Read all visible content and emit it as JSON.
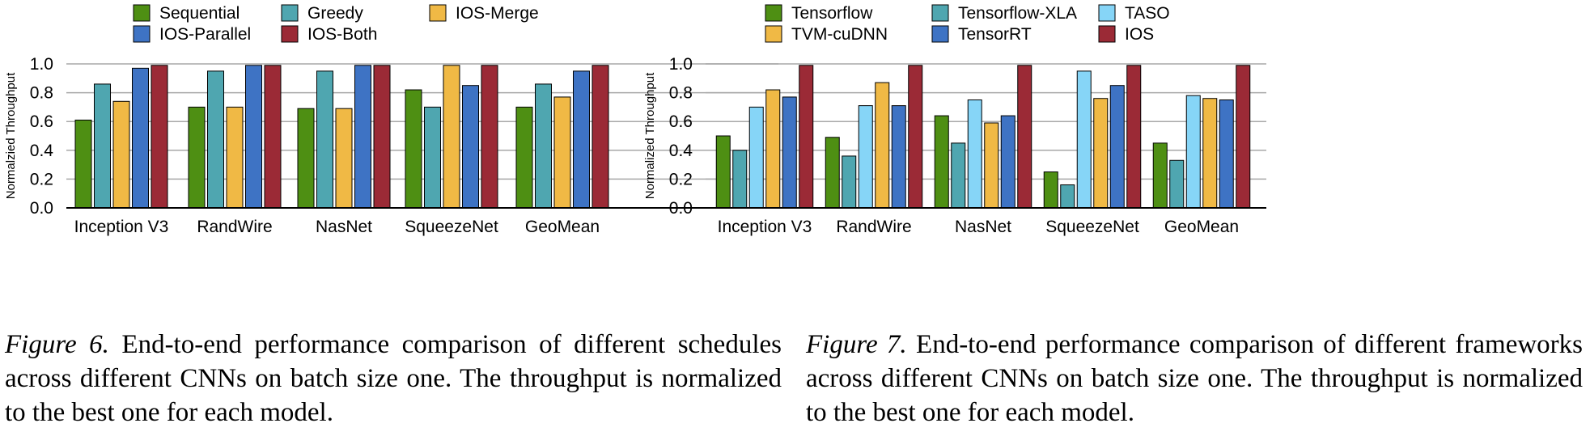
{
  "chart_data": [
    {
      "type": "bar",
      "ylabel": "Normalzied Throughput",
      "ylim": [
        0,
        1.0
      ],
      "yticks": [
        "0.0",
        "0.2",
        "0.4",
        "0.6",
        "0.8",
        "1.0"
      ],
      "grid": true,
      "legend_position": "top",
      "categories": [
        "Inception V3",
        "RandWire",
        "NasNet",
        "SqueezeNet",
        "GeoMean"
      ],
      "series": [
        {
          "name": "Sequential",
          "color": "#4e8f13",
          "values": [
            0.61,
            0.7,
            0.69,
            0.82,
            0.7
          ]
        },
        {
          "name": "Greedy",
          "color": "#4fa6b0",
          "values": [
            0.86,
            0.95,
            0.95,
            0.7,
            0.86
          ]
        },
        {
          "name": "IOS-Merge",
          "color": "#f0b945",
          "values": [
            0.74,
            0.7,
            0.69,
            0.99,
            0.77
          ]
        },
        {
          "name": "IOS-Parallel",
          "color": "#3e73c4",
          "values": [
            0.97,
            0.99,
            0.99,
            0.85,
            0.95
          ]
        },
        {
          "name": "IOS-Both",
          "color": "#9b2a36",
          "values": [
            0.99,
            0.99,
            0.99,
            0.99,
            0.99
          ]
        }
      ]
    },
    {
      "type": "bar",
      "ylabel": "Normalized Throughput",
      "ylim": [
        0,
        1.0
      ],
      "yticks": [
        "0.0",
        "0.2",
        "0.4",
        "0.6",
        "0.8",
        "1.0"
      ],
      "grid": true,
      "legend_position": "top",
      "categories": [
        "Inception V3",
        "RandWire",
        "NasNet",
        "SqueezeNet",
        "GeoMean"
      ],
      "series": [
        {
          "name": "Tensorflow",
          "color": "#4e8f13",
          "values": [
            0.5,
            0.49,
            0.64,
            0.25,
            0.45
          ]
        },
        {
          "name": "Tensorflow-XLA",
          "color": "#4fa6b0",
          "values": [
            0.4,
            0.36,
            0.45,
            0.16,
            0.33
          ]
        },
        {
          "name": "TASO",
          "color": "#86d5f7",
          "values": [
            0.7,
            0.71,
            0.75,
            0.95,
            0.78
          ]
        },
        {
          "name": "TVM-cuDNN",
          "color": "#f0b945",
          "values": [
            0.82,
            0.87,
            0.59,
            0.76,
            0.76
          ]
        },
        {
          "name": "TensorRT",
          "color": "#3e73c4",
          "values": [
            0.77,
            0.71,
            0.64,
            0.85,
            0.75
          ]
        },
        {
          "name": "IOS",
          "color": "#9b2a36",
          "values": [
            0.99,
            0.99,
            0.99,
            0.99,
            0.99
          ]
        }
      ]
    }
  ],
  "captions": [
    {
      "label": "Figure 6.",
      "text": "End-to-end performance comparison of different schedules across different CNNs on batch size one. The throughput is normalized to the best one for each model."
    },
    {
      "label": "Figure 7.",
      "text": "End-to-end performance comparison of different frameworks across different CNNs on batch size one. The throughput is normalized to the best one for each model."
    }
  ]
}
